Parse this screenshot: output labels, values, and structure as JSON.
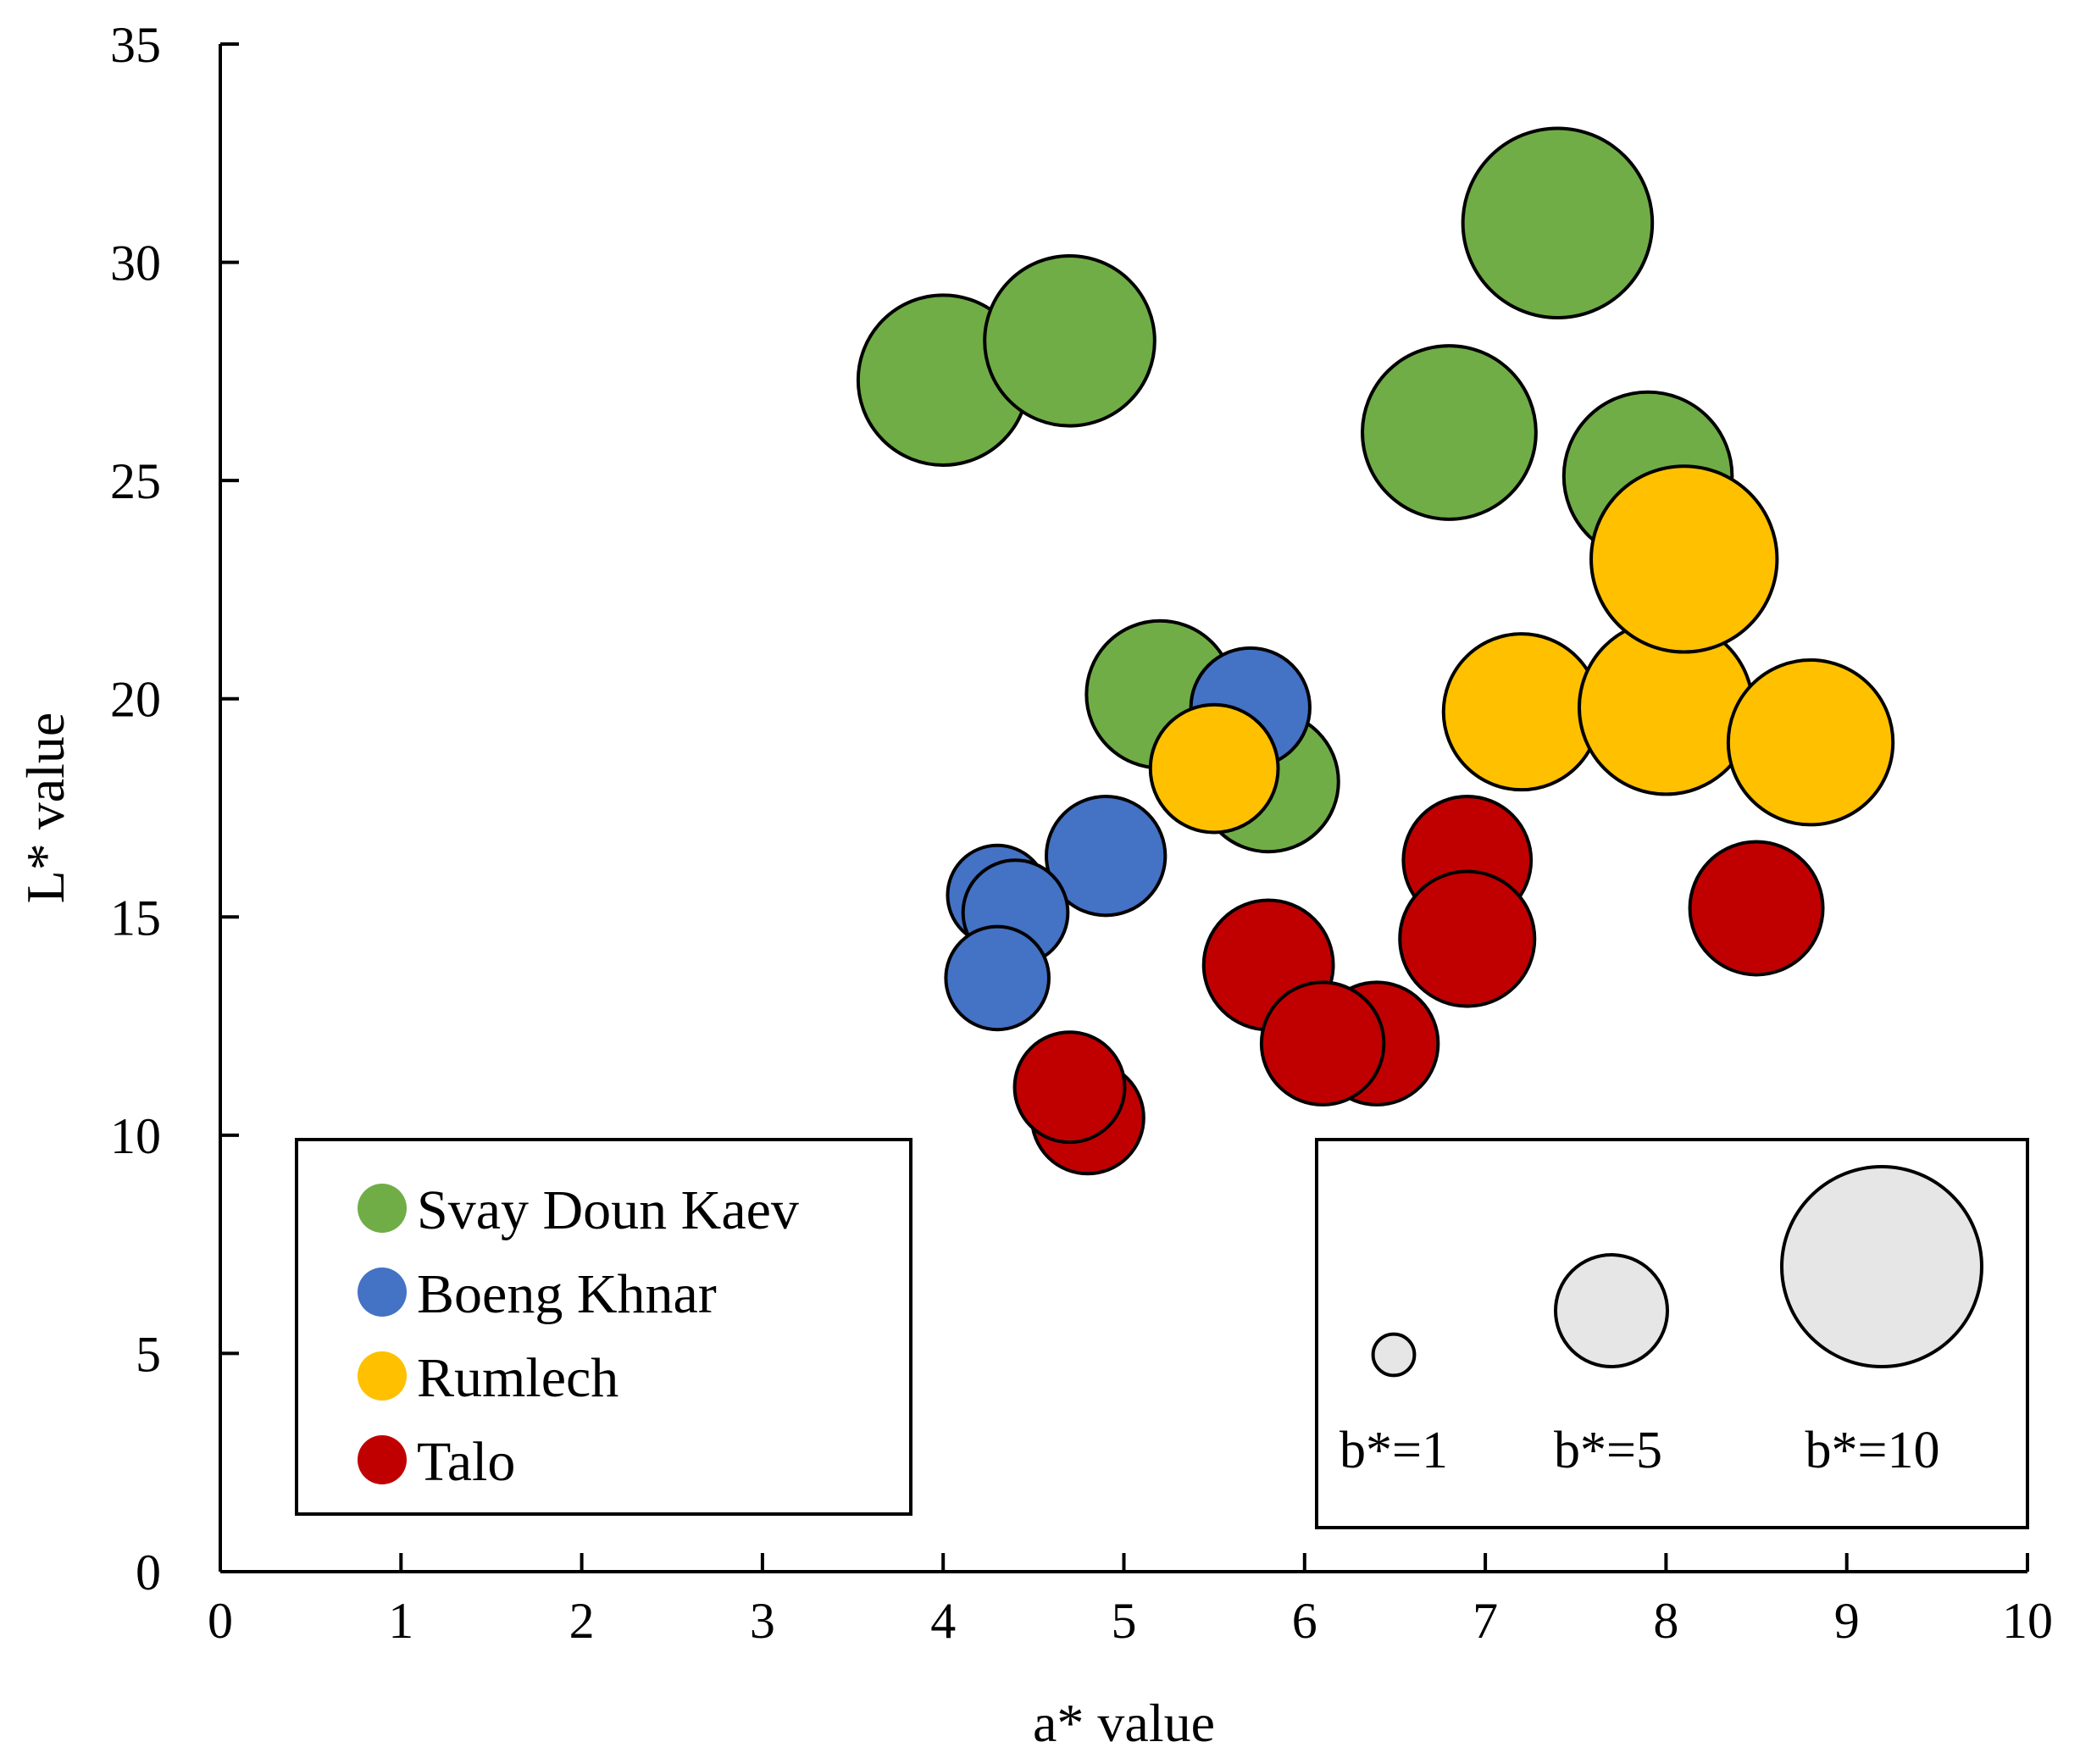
{
  "chart_data": {
    "type": "scatter",
    "subtype": "bubble",
    "title": "",
    "xlabel": "a* value",
    "ylabel": "L* value",
    "xlim": [
      0,
      10
    ],
    "ylim": [
      0,
      35
    ],
    "xticks": [
      0,
      1,
      2,
      3,
      4,
      5,
      6,
      7,
      8,
      9,
      10
    ],
    "yticks": [
      0,
      5,
      10,
      15,
      20,
      25,
      30,
      35
    ],
    "grid": false,
    "legend_position": "bottom-left",
    "size_legend_position": "bottom-right",
    "size_variable": "b*",
    "size_legend": [
      {
        "label": "b*=1",
        "b": 1
      },
      {
        "label": "b*=5",
        "b": 5
      },
      {
        "label": "b*=10",
        "b": 10
      }
    ],
    "series": [
      {
        "name": "Svay Doun Kaev",
        "color": "#70AD47",
        "points": [
          {
            "x": 4.0,
            "y": 27.3,
            "b": 8.3
          },
          {
            "x": 4.7,
            "y": 28.2,
            "b": 8.3
          },
          {
            "x": 7.4,
            "y": 30.9,
            "b": 9.4
          },
          {
            "x": 6.8,
            "y": 26.1,
            "b": 8.5
          },
          {
            "x": 7.9,
            "y": 25.1,
            "b": 8.2
          },
          {
            "x": 5.2,
            "y": 20.1,
            "b": 7.0
          },
          {
            "x": 5.8,
            "y": 18.1,
            "b": 6.6
          }
        ]
      },
      {
        "name": "Boeng Khnar",
        "color": "#4472C4",
        "points": [
          {
            "x": 5.7,
            "y": 19.8,
            "b": 5.4
          },
          {
            "x": 4.9,
            "y": 16.4,
            "b": 5.4
          },
          {
            "x": 4.3,
            "y": 15.5,
            "b": 4.3
          },
          {
            "x": 4.4,
            "y": 15.1,
            "b": 4.6
          },
          {
            "x": 4.3,
            "y": 13.6,
            "b": 4.5
          }
        ]
      },
      {
        "name": "Rumlech",
        "color": "#FFC000",
        "points": [
          {
            "x": 5.5,
            "y": 18.4,
            "b": 5.9
          },
          {
            "x": 7.2,
            "y": 19.7,
            "b": 7.5
          },
          {
            "x": 8.0,
            "y": 19.8,
            "b": 8.5
          },
          {
            "x": 8.8,
            "y": 19.0,
            "b": 8.0
          },
          {
            "x": 8.1,
            "y": 23.2,
            "b": 9.2
          }
        ]
      },
      {
        "name": "Talo",
        "color": "#C00000",
        "points": [
          {
            "x": 6.9,
            "y": 16.3,
            "b": 5.9
          },
          {
            "x": 6.9,
            "y": 14.5,
            "b": 6.3
          },
          {
            "x": 8.5,
            "y": 15.2,
            "b": 6.2
          },
          {
            "x": 5.8,
            "y": 13.9,
            "b": 6.0
          },
          {
            "x": 6.4,
            "y": 12.1,
            "b": 5.6
          },
          {
            "x": 6.1,
            "y": 12.1,
            "b": 5.6
          },
          {
            "x": 4.8,
            "y": 10.4,
            "b": 5.0
          },
          {
            "x": 4.7,
            "y": 11.1,
            "b": 4.9
          }
        ]
      }
    ]
  }
}
